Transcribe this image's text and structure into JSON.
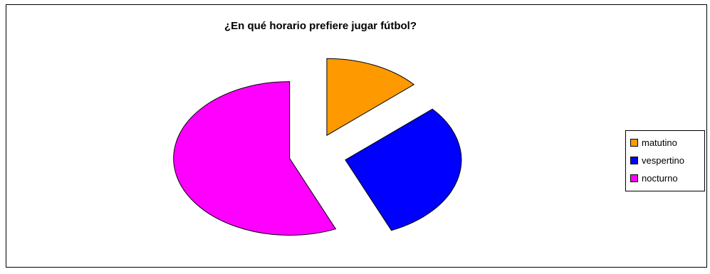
{
  "chart_data": {
    "type": "pie",
    "title": "¿En qué horario prefiere jugar fútbol?",
    "categories": [
      "matutino",
      "vespertino",
      "nocturno"
    ],
    "values": [
      13.5,
      30.0,
      56.5
    ],
    "colors": [
      "#ff9900",
      "#0000ff",
      "#ff00ff"
    ],
    "legend_position": "right",
    "exploded": true
  }
}
